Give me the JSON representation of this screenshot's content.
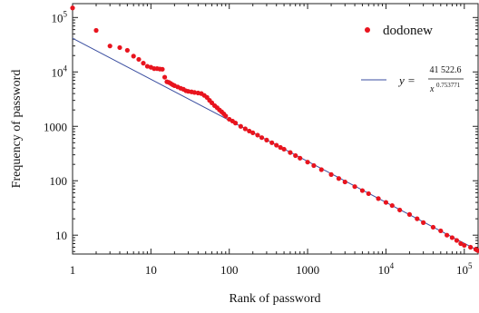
{
  "chart_data": {
    "type": "scatter",
    "title": "",
    "xlabel": "Rank of password",
    "ylabel": "Frequency of password",
    "x_scale": "log",
    "y_scale": "log",
    "xlim": [
      1,
      150000
    ],
    "ylim": [
      4.5,
      180000
    ],
    "x_ticks": [
      {
        "value": 1,
        "label": "1"
      },
      {
        "value": 10,
        "label": "10"
      },
      {
        "value": 100,
        "label": "100"
      },
      {
        "value": 1000,
        "label": "1000"
      },
      {
        "value": 10000,
        "base": "10",
        "exp": "4"
      },
      {
        "value": 100000,
        "base": "10",
        "exp": "5"
      }
    ],
    "y_ticks": [
      {
        "value": 10,
        "label": "10"
      },
      {
        "value": 100,
        "label": "100"
      },
      {
        "value": 1000,
        "label": "1000"
      },
      {
        "value": 10000,
        "base": "10",
        "exp": "4"
      },
      {
        "value": 100000,
        "base": "10",
        "exp": "5"
      }
    ],
    "grid": false,
    "legend_position": "top-right",
    "series": [
      {
        "name": "dodonew",
        "kind": "points",
        "color": "#e8141e",
        "points": [
          [
            1,
            150000
          ],
          [
            2,
            58000
          ],
          [
            3,
            30000
          ],
          [
            4,
            28000
          ],
          [
            5,
            25000
          ],
          [
            6,
            19500
          ],
          [
            7,
            17000
          ],
          [
            8,
            14500
          ],
          [
            9,
            12700
          ],
          [
            10,
            12200
          ],
          [
            11,
            11500
          ],
          [
            12,
            11500
          ],
          [
            13,
            11300
          ],
          [
            14,
            11200
          ],
          [
            15,
            8000
          ],
          [
            16,
            6600
          ],
          [
            17,
            6400
          ],
          [
            18,
            6100
          ],
          [
            19,
            5800
          ],
          [
            20,
            5600
          ],
          [
            22,
            5300
          ],
          [
            24,
            5000
          ],
          [
            26,
            4800
          ],
          [
            28,
            4500
          ],
          [
            30,
            4400
          ],
          [
            33,
            4300
          ],
          [
            36,
            4200
          ],
          [
            40,
            4100
          ],
          [
            44,
            4000
          ],
          [
            48,
            3700
          ],
          [
            52,
            3400
          ],
          [
            56,
            3000
          ],
          [
            60,
            2700
          ],
          [
            65,
            2400
          ],
          [
            70,
            2200
          ],
          [
            75,
            2000
          ],
          [
            80,
            1850
          ],
          [
            85,
            1700
          ],
          [
            90,
            1550
          ],
          [
            100,
            1350
          ],
          [
            110,
            1250
          ],
          [
            120,
            1150
          ],
          [
            140,
            1000
          ],
          [
            160,
            900
          ],
          [
            180,
            820
          ],
          [
            200,
            760
          ],
          [
            230,
            690
          ],
          [
            260,
            620
          ],
          [
            300,
            560
          ],
          [
            350,
            500
          ],
          [
            400,
            450
          ],
          [
            450,
            410
          ],
          [
            500,
            380
          ],
          [
            600,
            330
          ],
          [
            700,
            290
          ],
          [
            800,
            260
          ],
          [
            1000,
            220
          ],
          [
            1200,
            190
          ],
          [
            1500,
            160
          ],
          [
            2000,
            130
          ],
          [
            2500,
            110
          ],
          [
            3000,
            95
          ],
          [
            4000,
            78
          ],
          [
            5000,
            66
          ],
          [
            6000,
            58
          ],
          [
            8000,
            47
          ],
          [
            10000,
            40
          ],
          [
            12000,
            35
          ],
          [
            15000,
            29
          ],
          [
            20000,
            24
          ],
          [
            25000,
            20
          ],
          [
            30000,
            17
          ],
          [
            40000,
            14
          ],
          [
            50000,
            12
          ],
          [
            60000,
            10
          ],
          [
            70000,
            9
          ],
          [
            80000,
            8
          ],
          [
            90000,
            7
          ],
          [
            100000,
            6.5
          ],
          [
            120000,
            6
          ],
          [
            140000,
            5.5
          ],
          [
            150000,
            5.2
          ]
        ]
      },
      {
        "name": "fit",
        "kind": "line",
        "color": "#3a4ea0",
        "coefficient": 41522.6,
        "exponent": 0.753771
      }
    ],
    "legend": {
      "series_name": "dodonew",
      "fit_lhs": "y =",
      "fit_numerator": "41 522.6",
      "fit_denominator_base": "x",
      "fit_denominator_exp": "0.753771"
    }
  }
}
